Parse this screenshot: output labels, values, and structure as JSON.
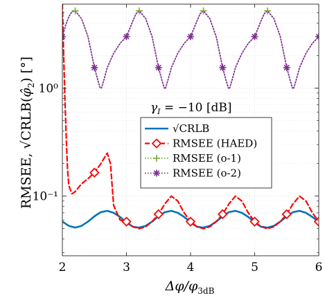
{
  "chart_data": {
    "type": "line",
    "xlabel": "Δφ/φ",
    "xlabel_sub": "3dB",
    "ylabel": "RMSEE, √CRLB(φ̂₂) [°]",
    "ylabel_parts": {
      "prefix": "RMSEE, ",
      "sqrt_arg": "CRLB(",
      "var": "φ̂",
      "var_sub": "2",
      "suffix": ") [°]"
    },
    "yscale": "log",
    "xlim": [
      2,
      6
    ],
    "ylim": [
      0.028,
      6.0
    ],
    "xticks": [
      2,
      3,
      4,
      5,
      6
    ],
    "xtick_labels": [
      "2",
      "3",
      "4",
      "5",
      "6"
    ],
    "yticks": [
      0.1,
      1
    ],
    "ytick_labels": [
      "10⁻¹",
      "10⁰"
    ],
    "grid": true,
    "annotation": {
      "text": "γ",
      "sub": "I",
      "rest": " = −10 [dB]",
      "x": 4.25,
      "y": 0.83
    },
    "legend_position": "center-right",
    "series": [
      {
        "name": "√CRLB",
        "color": "#0072BD",
        "style": "solid",
        "marker": "none",
        "x": [
          2.0,
          2.1,
          2.2,
          2.3,
          2.4,
          2.5,
          2.6,
          2.7,
          2.8,
          2.9,
          3.0,
          3.1,
          3.2,
          3.3,
          3.4,
          3.5,
          3.6,
          3.7,
          3.8,
          3.9,
          4.0,
          4.1,
          4.2,
          4.3,
          4.4,
          4.5,
          4.6,
          4.7,
          4.8,
          4.9,
          5.0,
          5.1,
          5.2,
          5.3,
          5.4,
          5.5,
          5.6,
          5.7,
          5.8,
          5.9,
          6.0
        ],
        "values": [
          0.058,
          0.053,
          0.051,
          0.053,
          0.058,
          0.065,
          0.071,
          0.073,
          0.07,
          0.064,
          0.057,
          0.052,
          0.051,
          0.053,
          0.058,
          0.065,
          0.071,
          0.073,
          0.07,
          0.064,
          0.057,
          0.052,
          0.051,
          0.053,
          0.058,
          0.065,
          0.071,
          0.073,
          0.07,
          0.064,
          0.057,
          0.052,
          0.051,
          0.053,
          0.058,
          0.065,
          0.071,
          0.073,
          0.07,
          0.064,
          0.058
        ]
      },
      {
        "name": "RMSEE (HAED)",
        "color": "#FF0000",
        "style": "dashed",
        "marker": "diamond",
        "x": [
          2.0,
          2.02,
          2.04,
          2.06,
          2.08,
          2.1,
          2.15,
          2.2,
          2.3,
          2.4,
          2.5,
          2.6,
          2.7,
          2.75,
          2.8,
          2.9,
          3.0,
          3.1,
          3.2,
          3.3,
          3.4,
          3.5,
          3.6,
          3.7,
          3.8,
          3.9,
          4.0,
          4.1,
          4.2,
          4.3,
          4.4,
          4.5,
          4.6,
          4.7,
          4.8,
          4.9,
          5.0,
          5.1,
          5.2,
          5.3,
          5.4,
          5.5,
          5.6,
          5.7,
          5.8,
          5.9,
          6.0
        ],
        "values": [
          6.0,
          2.0,
          0.8,
          0.35,
          0.18,
          0.125,
          0.105,
          0.11,
          0.13,
          0.145,
          0.165,
          0.2,
          0.25,
          0.2,
          0.082,
          0.06,
          0.058,
          0.052,
          0.05,
          0.052,
          0.058,
          0.068,
          0.085,
          0.1,
          0.09,
          0.07,
          0.058,
          0.052,
          0.05,
          0.052,
          0.058,
          0.068,
          0.085,
          0.1,
          0.09,
          0.07,
          0.058,
          0.052,
          0.05,
          0.052,
          0.058,
          0.068,
          0.085,
          0.1,
          0.09,
          0.07,
          0.058
        ],
        "marker_x": [
          2.5,
          3.0,
          3.5,
          4.0,
          4.5,
          5.0,
          5.5,
          6.0
        ],
        "marker_values": [
          0.165,
          0.058,
          0.068,
          0.058,
          0.068,
          0.058,
          0.068,
          0.058
        ]
      },
      {
        "name": "RMSEE (o-1)",
        "color": "#77AC30",
        "style": "dotted",
        "marker": "plus",
        "x": [
          2.2,
          3.2,
          4.2,
          5.2
        ],
        "values": [
          5.2,
          5.2,
          5.2,
          5.2
        ]
      },
      {
        "name": "RMSEE (o-2)",
        "color": "#7E2F8E",
        "style": "dotted",
        "marker": "asterisk",
        "segments": [
          {
            "x": [
              2.0,
              2.05,
              2.1,
              2.15,
              2.2,
              2.3,
              2.4,
              2.5,
              2.55,
              2.59
            ],
            "values": [
              3.0,
              3.8,
              4.6,
              5.1,
              5.2,
              4.4,
              3.0,
              1.55,
              1.2,
              1.0
            ]
          },
          {
            "x": [
              2.61,
              2.65,
              2.7,
              2.8,
              2.9,
              3.0,
              3.1,
              3.15,
              3.2,
              3.3,
              3.4,
              3.5,
              3.55,
              3.59
            ],
            "values": [
              1.0,
              1.2,
              1.55,
              2.1,
              2.6,
              3.0,
              4.2,
              4.9,
              5.2,
              4.4,
              3.0,
              1.55,
              1.2,
              1.0
            ]
          },
          {
            "x": [
              3.61,
              3.65,
              3.7,
              3.8,
              3.9,
              4.0,
              4.1,
              4.15,
              4.2,
              4.3,
              4.4,
              4.5,
              4.55,
              4.59
            ],
            "values": [
              1.0,
              1.2,
              1.55,
              2.1,
              2.6,
              3.0,
              4.2,
              4.9,
              5.2,
              4.4,
              3.0,
              1.55,
              1.2,
              1.0
            ]
          },
          {
            "x": [
              4.61,
              4.65,
              4.7,
              4.8,
              4.9,
              5.0,
              5.1,
              5.15,
              5.2,
              5.3,
              5.4,
              5.5,
              5.55,
              5.59
            ],
            "values": [
              1.0,
              1.2,
              1.55,
              2.1,
              2.6,
              3.0,
              4.2,
              4.9,
              5.2,
              4.4,
              3.0,
              1.55,
              1.2,
              1.0
            ]
          },
          {
            "x": [
              5.61,
              5.65,
              5.7,
              5.8,
              5.9,
              6.0
            ],
            "values": [
              1.0,
              1.2,
              1.55,
              2.1,
              2.6,
              3.0
            ]
          }
        ],
        "marker_x": [
          2.0,
          2.5,
          3.0,
          3.5,
          4.0,
          4.5,
          5.0,
          5.5,
          6.0
        ],
        "marker_values": [
          3.0,
          1.55,
          3.0,
          1.55,
          3.0,
          1.55,
          3.0,
          1.55,
          3.0
        ]
      }
    ]
  }
}
